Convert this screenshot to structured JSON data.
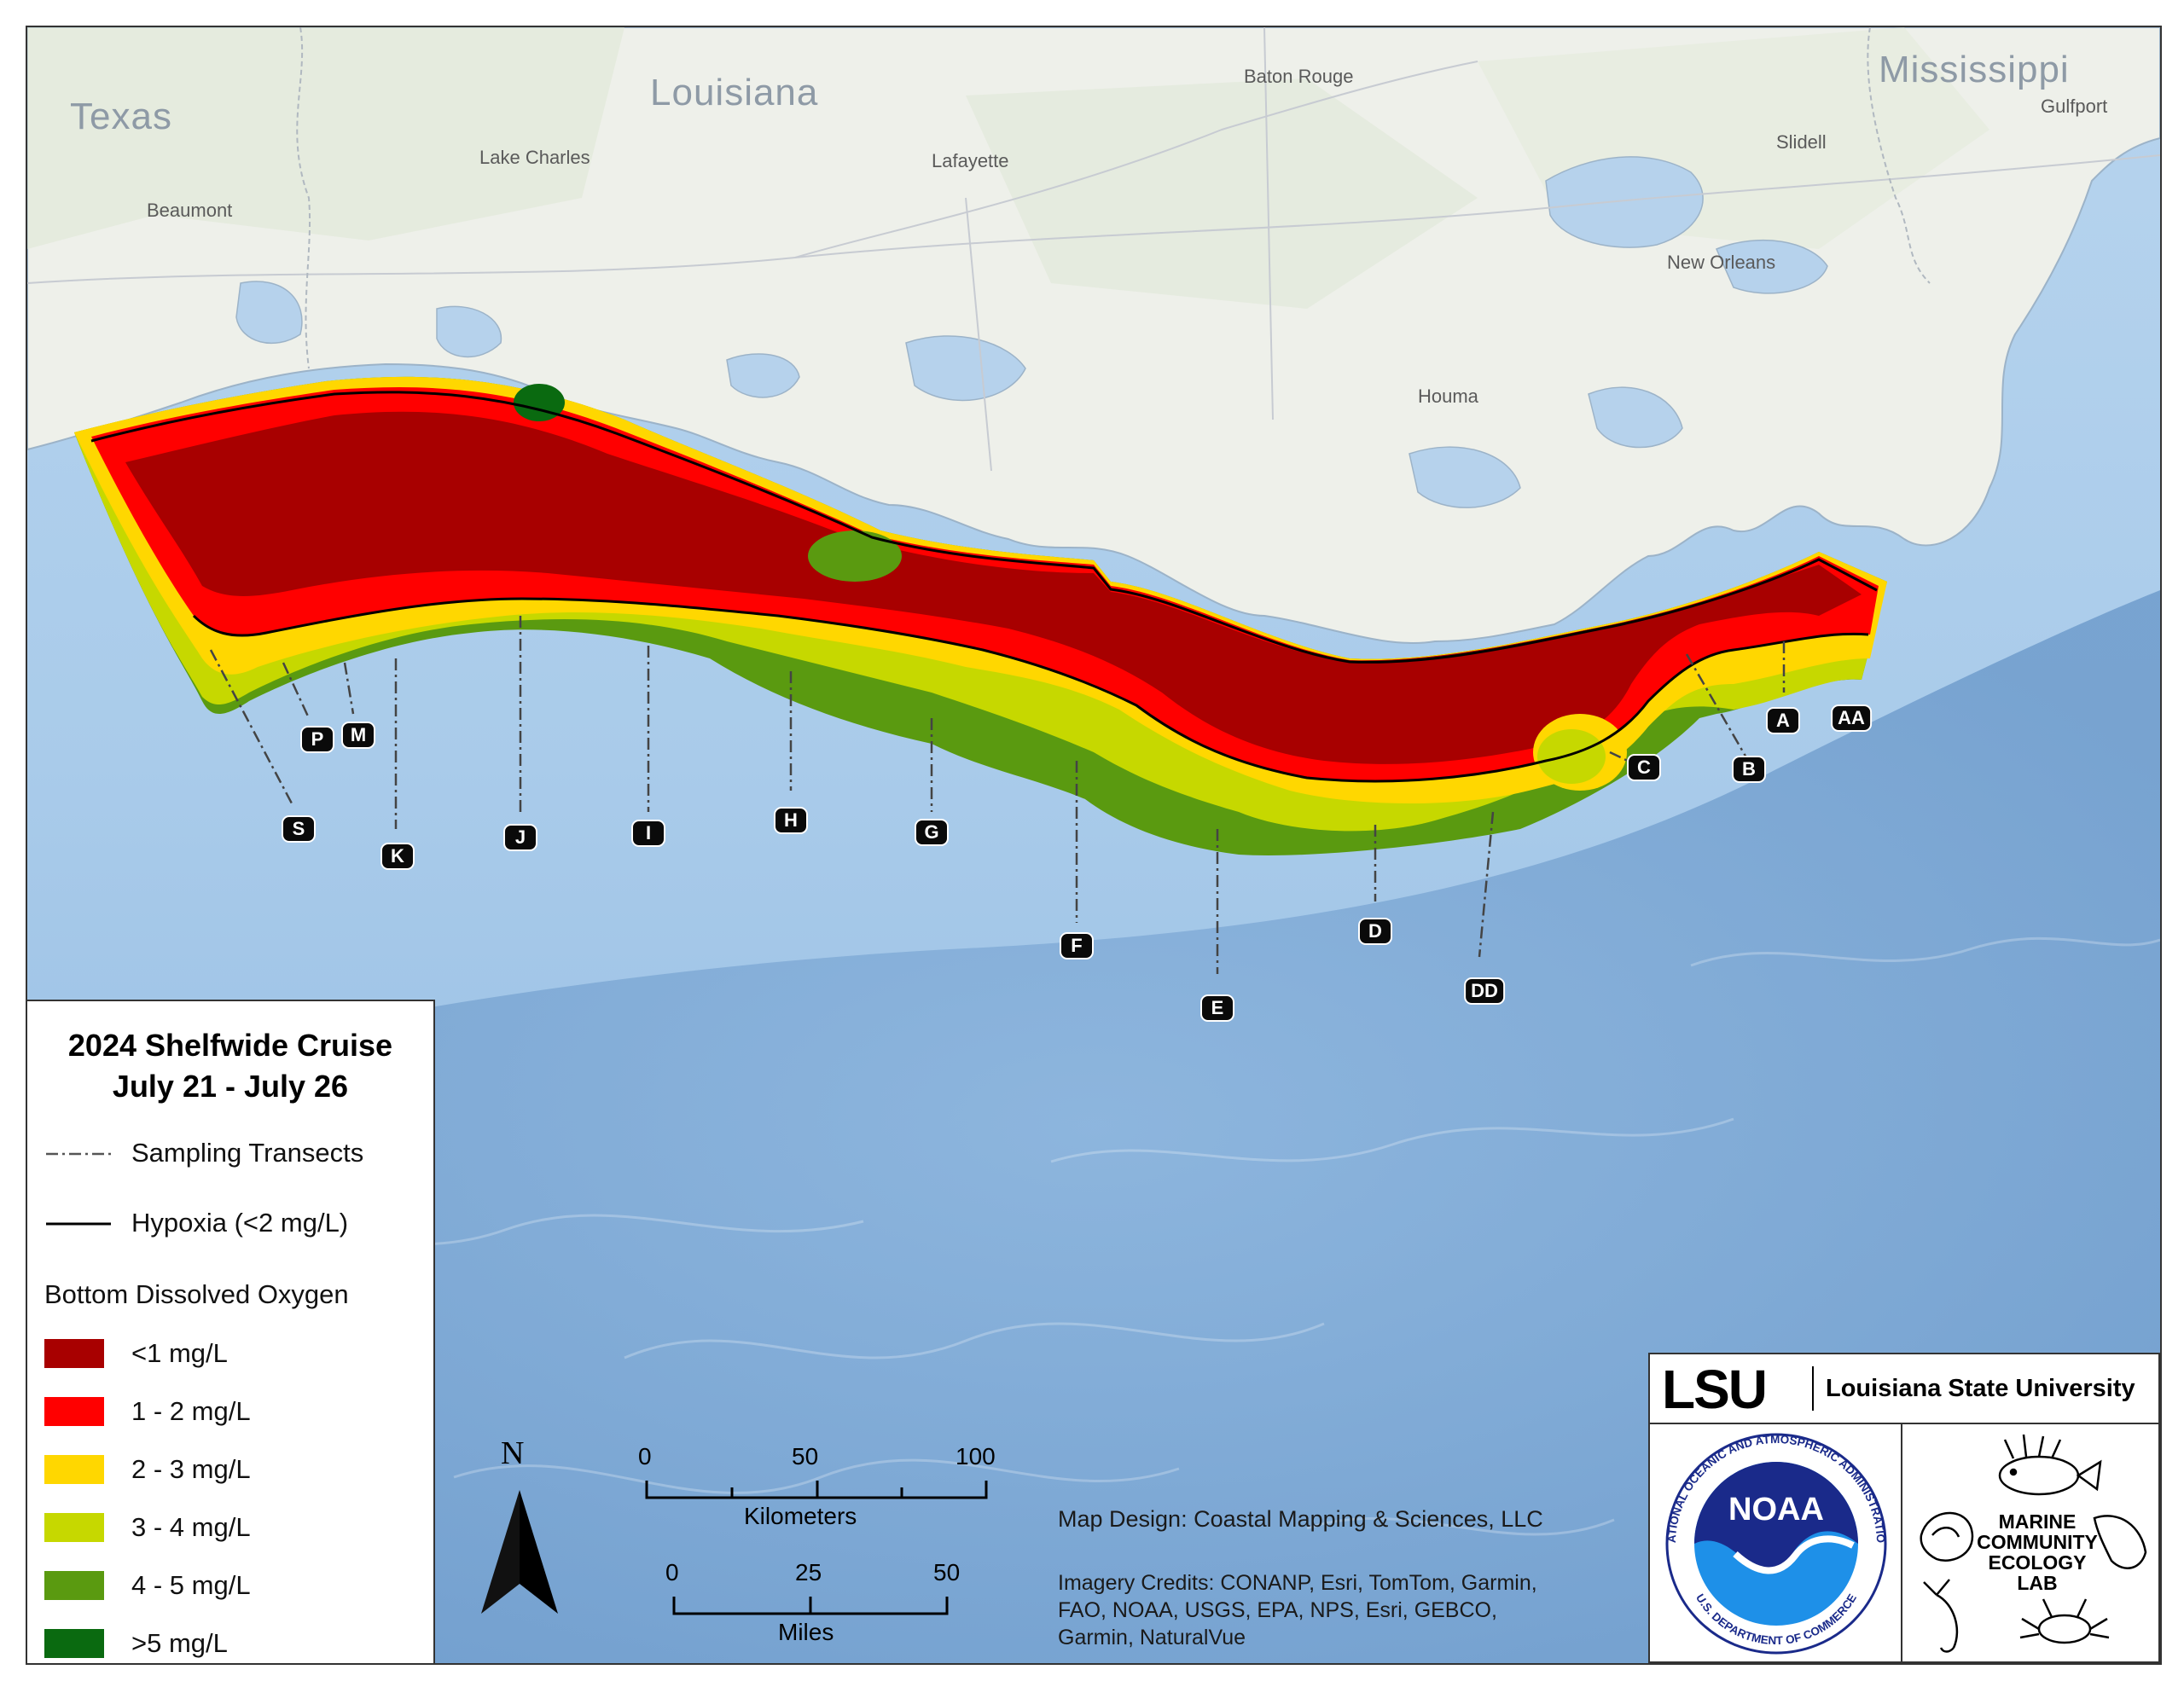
{
  "places": {
    "states": [
      "Texas",
      "Louisiana",
      "Mississippi"
    ],
    "cities": [
      "Baton Rouge",
      "Lake Charles",
      "Lafayette",
      "Beaumont",
      "Slidell",
      "Gulfport",
      "New Orleans",
      "Houma"
    ]
  },
  "transects": [
    "S",
    "P",
    "M",
    "K",
    "J",
    "I",
    "H",
    "G",
    "F",
    "E",
    "D",
    "DD",
    "C",
    "B",
    "A",
    "AA"
  ],
  "legend": {
    "title_line1": "2024 Shelfwide Cruise",
    "title_line2": "July 21 - July 26",
    "transects_label": "Sampling Transects",
    "hypoxia_label": "Hypoxia (<2 mg/L)",
    "do_header": "Bottom Dissolved Oxygen",
    "classes": [
      {
        "label": "<1 mg/L",
        "color": "#a80000"
      },
      {
        "label": "1 - 2 mg/L",
        "color": "#ff0000"
      },
      {
        "label": "2 - 3 mg/L",
        "color": "#ffd700"
      },
      {
        "label": "3 - 4 mg/L",
        "color": "#c6d800"
      },
      {
        "label": "4 - 5 mg/L",
        "color": "#5a9a10"
      },
      {
        "label": ">5 mg/L",
        "color": "#0a6a10"
      }
    ]
  },
  "north_label": "N",
  "scale": {
    "km_ticks": [
      "0",
      "50",
      "100"
    ],
    "km_label": "Kilometers",
    "mi_ticks": [
      "0",
      "25",
      "50"
    ],
    "mi_label": "Miles"
  },
  "credits": {
    "design": "Map Design: Coastal Mapping & Sciences, LLC",
    "imagery_line1": "Imagery Credits: CONANP, Esri, TomTom, Garmin,",
    "imagery_line2": "FAO, NOAA, USGS, EPA, NPS, Esri, GEBCO,",
    "imagery_line3": "Garmin, NaturalVue"
  },
  "logos": {
    "lsu_mark": "LSU",
    "lsu_name": "Louisiana State University",
    "noaa_mark": "NOAA",
    "noaa_ring_top": "NATIONAL OCEANIC AND ATMOSPHERIC ADMINISTRATION",
    "noaa_ring_bottom": "U.S. DEPARTMENT OF COMMERCE",
    "mcel_line1": "MARINE",
    "mcel_line2": "COMMUNITY",
    "mcel_line3": "ECOLOGY",
    "mcel_line4": "LAB"
  }
}
